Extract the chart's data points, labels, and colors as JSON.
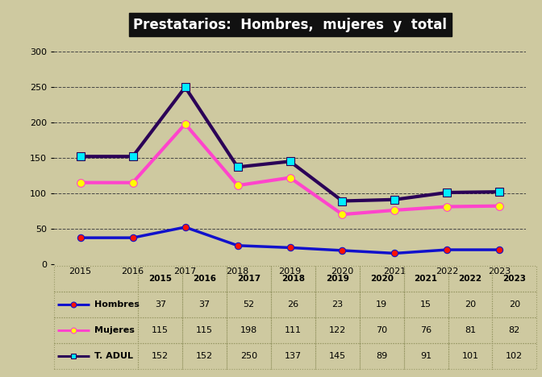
{
  "title": "Prestatarios:  Hombres,  mujeres  y  total",
  "years": [
    2015,
    2016,
    2017,
    2018,
    2019,
    2020,
    2021,
    2022,
    2023
  ],
  "hombres": [
    37,
    37,
    52,
    26,
    23,
    19,
    15,
    20,
    20
  ],
  "mujeres": [
    115,
    115,
    198,
    111,
    122,
    70,
    76,
    81,
    82
  ],
  "t_adul": [
    152,
    152,
    250,
    137,
    145,
    89,
    91,
    101,
    102
  ],
  "hombres_line_color": "#1111cc",
  "hombres_marker_color": "#ff1100",
  "mujeres_line_color": "#ff44cc",
  "mujeres_marker_color": "#ffff00",
  "t_adul_line_color": "#2b0057",
  "t_adul_marker_color": "#00eeff",
  "bg_color": "#cec9a0",
  "grid_color": "#444444",
  "title_bg": "#111111",
  "title_fg": "#ffffff",
  "ylim": [
    0,
    320
  ],
  "yticks": [
    0,
    50,
    100,
    150,
    200,
    250,
    300
  ],
  "table_border_color": "#999966",
  "linewidth": 2.5
}
